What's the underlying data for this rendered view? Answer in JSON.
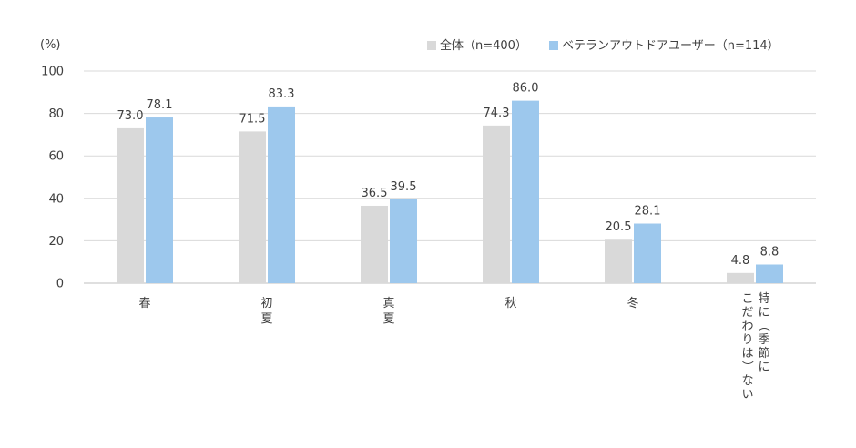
{
  "chart_data": {
    "type": "bar",
    "ylabel": "(%)",
    "ylim": [
      0,
      100
    ],
    "yticks": [
      0,
      20,
      40,
      60,
      80,
      100
    ],
    "grid": true,
    "legend_position": "top-right",
    "categories": [
      {
        "lines": [
          "春"
        ]
      },
      {
        "lines": [
          "初",
          "夏"
        ]
      },
      {
        "lines": [
          "真",
          "夏"
        ]
      },
      {
        "lines": [
          "秋"
        ]
      },
      {
        "lines": [
          "冬"
        ]
      },
      {
        "lines": [
          "特に（季節に",
          "こだわりは）ない"
        ],
        "vertical": true
      }
    ],
    "series": [
      {
        "name": "全体（n=400）",
        "color": "#d9d9d9",
        "values": [
          73.0,
          71.5,
          36.5,
          74.3,
          20.5,
          4.8
        ],
        "labels": [
          "73.0",
          "71.5",
          "36.5",
          "74.3",
          "20.5",
          "4.8"
        ]
      },
      {
        "name": "ベテランアウトドアユーザー（n=114）",
        "color": "#9dc8ed",
        "values": [
          78.1,
          83.3,
          39.5,
          86.0,
          28.1,
          8.8
        ],
        "labels": [
          "78.1",
          "83.3",
          "39.5",
          "86.0",
          "28.1",
          "8.8"
        ]
      }
    ]
  }
}
